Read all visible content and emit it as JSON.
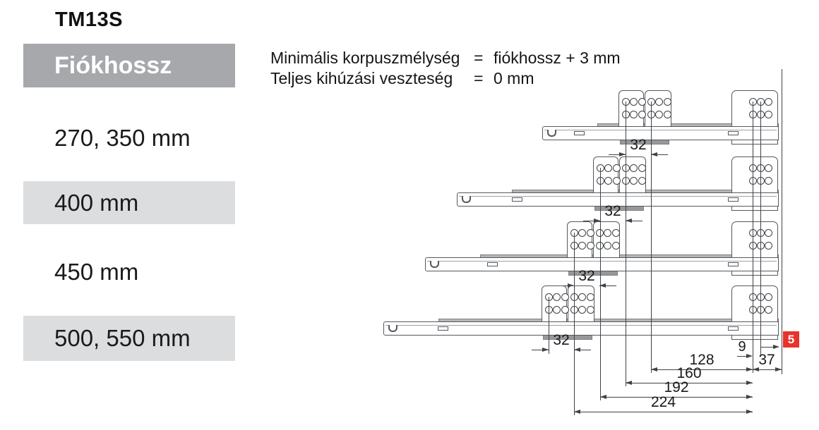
{
  "title": "TM13S",
  "specs": {
    "line1_label": "Minimális korpuszmélység",
    "line1_eq": "=",
    "line1_value": "fiókhossz + 3 mm",
    "line2_label": "Teljes kihúzási veszteség",
    "line2_eq": "=",
    "line2_value": "0 mm"
  },
  "table": {
    "header": "Fiókhossz",
    "rows": [
      {
        "label": "270, 350 mm",
        "shaded": false
      },
      {
        "label": "400 mm",
        "shaded": true
      },
      {
        "label": "450 mm",
        "shaded": false
      },
      {
        "label": "500, 550 mm",
        "shaded": true
      }
    ]
  },
  "diagram": {
    "hole_pitch_label": "32",
    "depth_labels": [
      "128",
      "160",
      "192",
      "224"
    ],
    "front_offset_label": "9",
    "front_depth_label": "37",
    "gap_label": "5",
    "colors": {
      "accent_red": "#e8332b",
      "header_gray": "#a6a8ab",
      "row_gray": "#dcdddf",
      "band_gray": "#b4b6b8",
      "tab_gray": "#96989b",
      "outline": "#55585c",
      "dim_line": "#3f4246"
    }
  }
}
